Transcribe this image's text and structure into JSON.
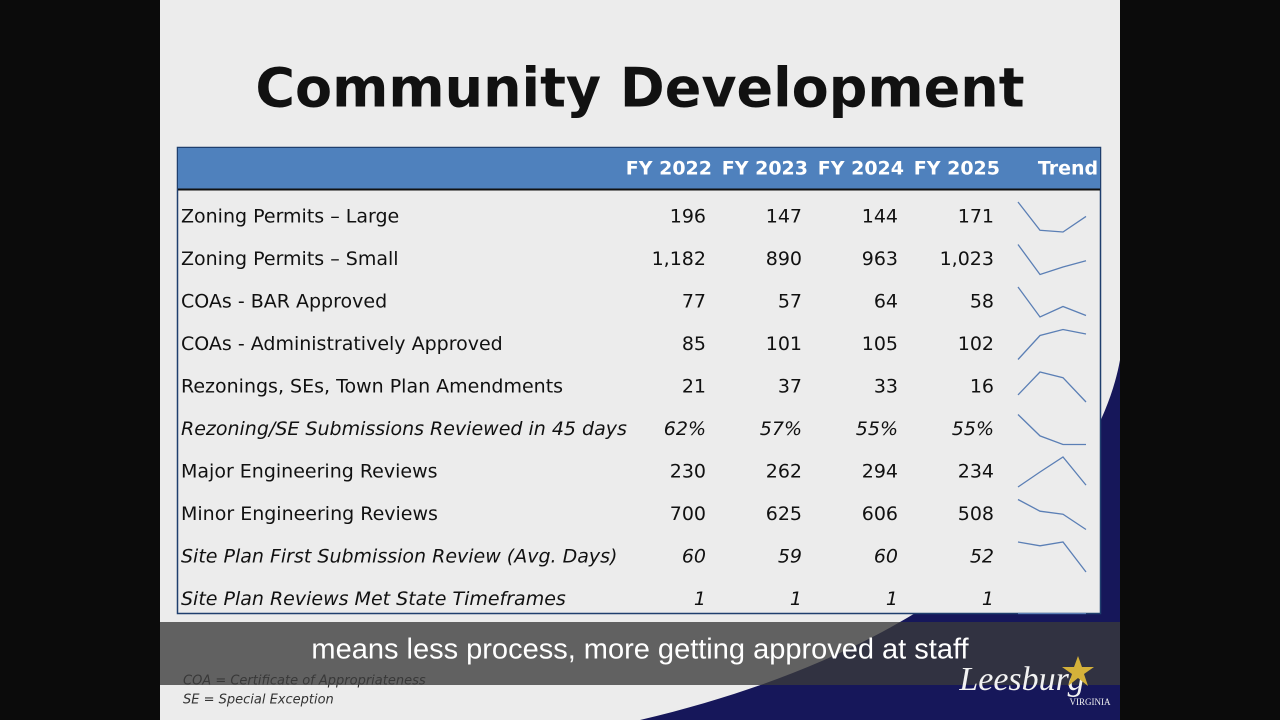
{
  "title": "Community Development",
  "table": {
    "columns": [
      "FY 2022",
      "FY 2023",
      "FY 2024",
      "FY 2025"
    ],
    "trend_header": "Trend",
    "rows": [
      {
        "label": "Zoning Permits – Large",
        "italic": false,
        "values": [
          196,
          147,
          144,
          171
        ]
      },
      {
        "label": "Zoning Permits – Small",
        "italic": false,
        "values": [
          {
            "value": 1182,
            "label": "1,182"
          },
          890,
          963,
          {
            "value": 1023,
            "label": "1,023"
          }
        ]
      },
      {
        "label": "COAs - BAR Approved",
        "italic": false,
        "values": [
          77,
          57,
          64,
          58
        ]
      },
      {
        "label": "COAs - Administratively Approved",
        "italic": false,
        "values": [
          85,
          101,
          105,
          102
        ]
      },
      {
        "label": "Rezonings, SEs, Town Plan Amendments",
        "italic": false,
        "values": [
          21,
          37,
          33,
          16
        ]
      },
      {
        "label": "Rezoning/SE Submissions Reviewed in 45 days",
        "italic": true,
        "values": [
          {
            "value": 62,
            "label": "62%"
          },
          {
            "value": 57,
            "label": "57%"
          },
          {
            "value": 55,
            "label": "55%"
          },
          {
            "value": 55,
            "label": "55%"
          }
        ]
      },
      {
        "label": "Major Engineering Reviews",
        "italic": false,
        "values": [
          230,
          262,
          294,
          234
        ]
      },
      {
        "label": "Minor Engineering Reviews",
        "italic": false,
        "values": [
          700,
          625,
          606,
          508
        ]
      },
      {
        "label": "Site Plan First Submission Review (Avg. Days)",
        "italic": true,
        "values": [
          60,
          59,
          60,
          52
        ]
      },
      {
        "label": "Site Plan Reviews Met State Timeframes",
        "italic": true,
        "values": [
          1,
          1,
          1,
          1
        ]
      }
    ]
  },
  "footnotes": [
    "COA = Certificate of Appropriateness",
    "SE = Special Exception"
  ],
  "logo": {
    "name": "Leesburg",
    "state": "VIRGINIA"
  },
  "caption": "means less process, more getting approved at staff"
}
